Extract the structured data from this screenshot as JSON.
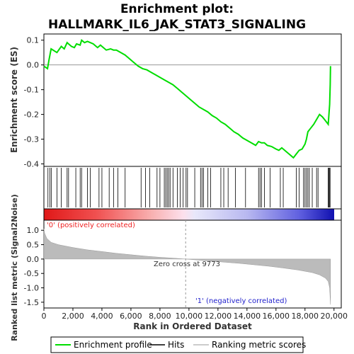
{
  "title_line1": "Enrichment plot:",
  "title_line2": "HALLMARK_IL6_JAK_STAT3_SIGNALING",
  "colors": {
    "es_line": "#00dd00",
    "hits": "#000000",
    "metric_fill": "#bbbbbb",
    "pos_label": "#ee2222",
    "neg_label": "#2222cc",
    "frame": "#000000"
  },
  "chart_data": [
    {
      "type": "line",
      "name": "enrichment_plot",
      "ylabel": "Enrichment score (ES)",
      "xlim": [
        0,
        20500
      ],
      "ylim": [
        -0.41,
        0.125
      ],
      "yticks": [
        0.1,
        0.0,
        -0.1,
        -0.2,
        -0.3,
        -0.4
      ],
      "ytick_labels": [
        "0.1",
        "0.0",
        "-0.1",
        "-0.2",
        "-0.3",
        "-0.4"
      ],
      "series": [
        {
          "name": "Enrichment profile",
          "x": [
            0,
            250,
            350,
            500,
            900,
            1200,
            1400,
            1600,
            1700,
            1900,
            2100,
            2250,
            2500,
            2600,
            2800,
            3000,
            3200,
            3400,
            3700,
            3900,
            4100,
            4300,
            4600,
            4800,
            5000,
            5300,
            5600,
            5900,
            6200,
            6500,
            6800,
            7100,
            7400,
            7700,
            8000,
            8300,
            8600,
            8900,
            9200,
            9500,
            9800,
            10100,
            10400,
            10700,
            11000,
            11300,
            11600,
            11900,
            12200,
            12500,
            12800,
            13100,
            13400,
            13700,
            14000,
            14300,
            14600,
            14800,
            15000,
            15200,
            15400,
            15700,
            16000,
            16200,
            16400,
            16700,
            17000,
            17200,
            17400,
            17600,
            17800,
            18000,
            18100,
            18200,
            18400,
            18600,
            18800,
            19000,
            19200,
            19400,
            19600,
            19650,
            19700,
            19720,
            19740,
            19760
          ],
          "y": [
            -0.005,
            -0.015,
            0.02,
            0.065,
            0.05,
            0.075,
            0.065,
            0.09,
            0.085,
            0.075,
            0.07,
            0.085,
            0.08,
            0.1,
            0.09,
            0.095,
            0.09,
            0.085,
            0.07,
            0.08,
            0.07,
            0.06,
            0.065,
            0.06,
            0.06,
            0.05,
            0.04,
            0.025,
            0.01,
            -0.005,
            -0.015,
            -0.02,
            -0.03,
            -0.04,
            -0.05,
            -0.06,
            -0.07,
            -0.08,
            -0.095,
            -0.11,
            -0.125,
            -0.14,
            -0.155,
            -0.17,
            -0.18,
            -0.19,
            -0.205,
            -0.215,
            -0.23,
            -0.24,
            -0.255,
            -0.27,
            -0.28,
            -0.295,
            -0.305,
            -0.315,
            -0.325,
            -0.31,
            -0.315,
            -0.315,
            -0.325,
            -0.33,
            -0.34,
            -0.345,
            -0.335,
            -0.35,
            -0.365,
            -0.375,
            -0.36,
            -0.345,
            -0.34,
            -0.32,
            -0.3,
            -0.27,
            -0.255,
            -0.24,
            -0.22,
            -0.2,
            -0.21,
            -0.225,
            -0.24,
            -0.2,
            -0.16,
            -0.12,
            -0.08,
            -0.005
          ]
        }
      ]
    },
    {
      "type": "scatter",
      "name": "hits",
      "series": [
        {
          "name": "Hits",
          "x": [
            280,
            420,
            520,
            900,
            1200,
            1600,
            1700,
            2200,
            2500,
            2600,
            3000,
            3200,
            3800,
            4000,
            4500,
            4800,
            5100,
            5600,
            6700,
            7000,
            7300,
            7800,
            8000,
            8300,
            8400,
            8500,
            8600,
            8700,
            8900,
            9200,
            9400,
            9600,
            9800,
            9900,
            10400,
            10800,
            10900,
            11000,
            11300,
            11500,
            12200,
            12400,
            12700,
            13200,
            13900,
            14800,
            14900,
            15000,
            15200,
            15600,
            16300,
            16500,
            17400,
            17600,
            17900,
            18000,
            18100,
            18200,
            18300,
            18500,
            18800,
            18900,
            19600,
            19650,
            19700,
            19730
          ]
        }
      ]
    },
    {
      "type": "area",
      "name": "ranked_list_metric",
      "xlabel": "Rank in Ordered Dataset",
      "ylabel": "Ranked list metric (Signal2Noise)",
      "xlim": [
        0,
        20500
      ],
      "ylim": [
        -1.7,
        1.35
      ],
      "xticks": [
        0,
        2000,
        4000,
        6000,
        8000,
        10000,
        12000,
        14000,
        16000,
        18000,
        20000
      ],
      "xtick_labels": [
        "0",
        "2,000",
        "4,000",
        "6,000",
        "8,000",
        "10,000",
        "12,000",
        "14,000",
        "16,000",
        "18,000",
        "20,000"
      ],
      "yticks": [
        1.0,
        0.5,
        0.0,
        -0.5,
        -1.0,
        -1.5
      ],
      "ytick_labels": [
        "1.0",
        "0.5",
        "0.0",
        "-0.5",
        "-1.0",
        "-1.5"
      ],
      "series": [
        {
          "name": "Ranking metric scores",
          "x": [
            0,
            50,
            200,
            500,
            1000,
            2000,
            3000,
            4000,
            5000,
            6000,
            7000,
            8000,
            9000,
            9773,
            10500,
            11500,
            12500,
            13500,
            14500,
            15500,
            16500,
            17500,
            18500,
            19000,
            19400,
            19600,
            19700,
            19760
          ],
          "y": [
            1.05,
            0.9,
            0.72,
            0.58,
            0.5,
            0.4,
            0.32,
            0.26,
            0.2,
            0.15,
            0.1,
            0.06,
            0.03,
            0.0,
            -0.03,
            -0.07,
            -0.11,
            -0.15,
            -0.2,
            -0.25,
            -0.31,
            -0.38,
            -0.47,
            -0.55,
            -0.66,
            -0.78,
            -1.0,
            -1.58
          ]
        }
      ],
      "annotations": {
        "pos": "'0' (positively correlated)",
        "neg": "'1' (negatively correlated)",
        "zero_cross": "Zero cross at 9773"
      },
      "zero_cross": 9773
    }
  ],
  "legend": {
    "items": [
      {
        "label": "Enrichment profile",
        "color": "#00dd00"
      },
      {
        "label": "Hits",
        "color": "#000000"
      },
      {
        "label": "Ranking metric scores",
        "color": "#bbbbbb"
      }
    ]
  }
}
